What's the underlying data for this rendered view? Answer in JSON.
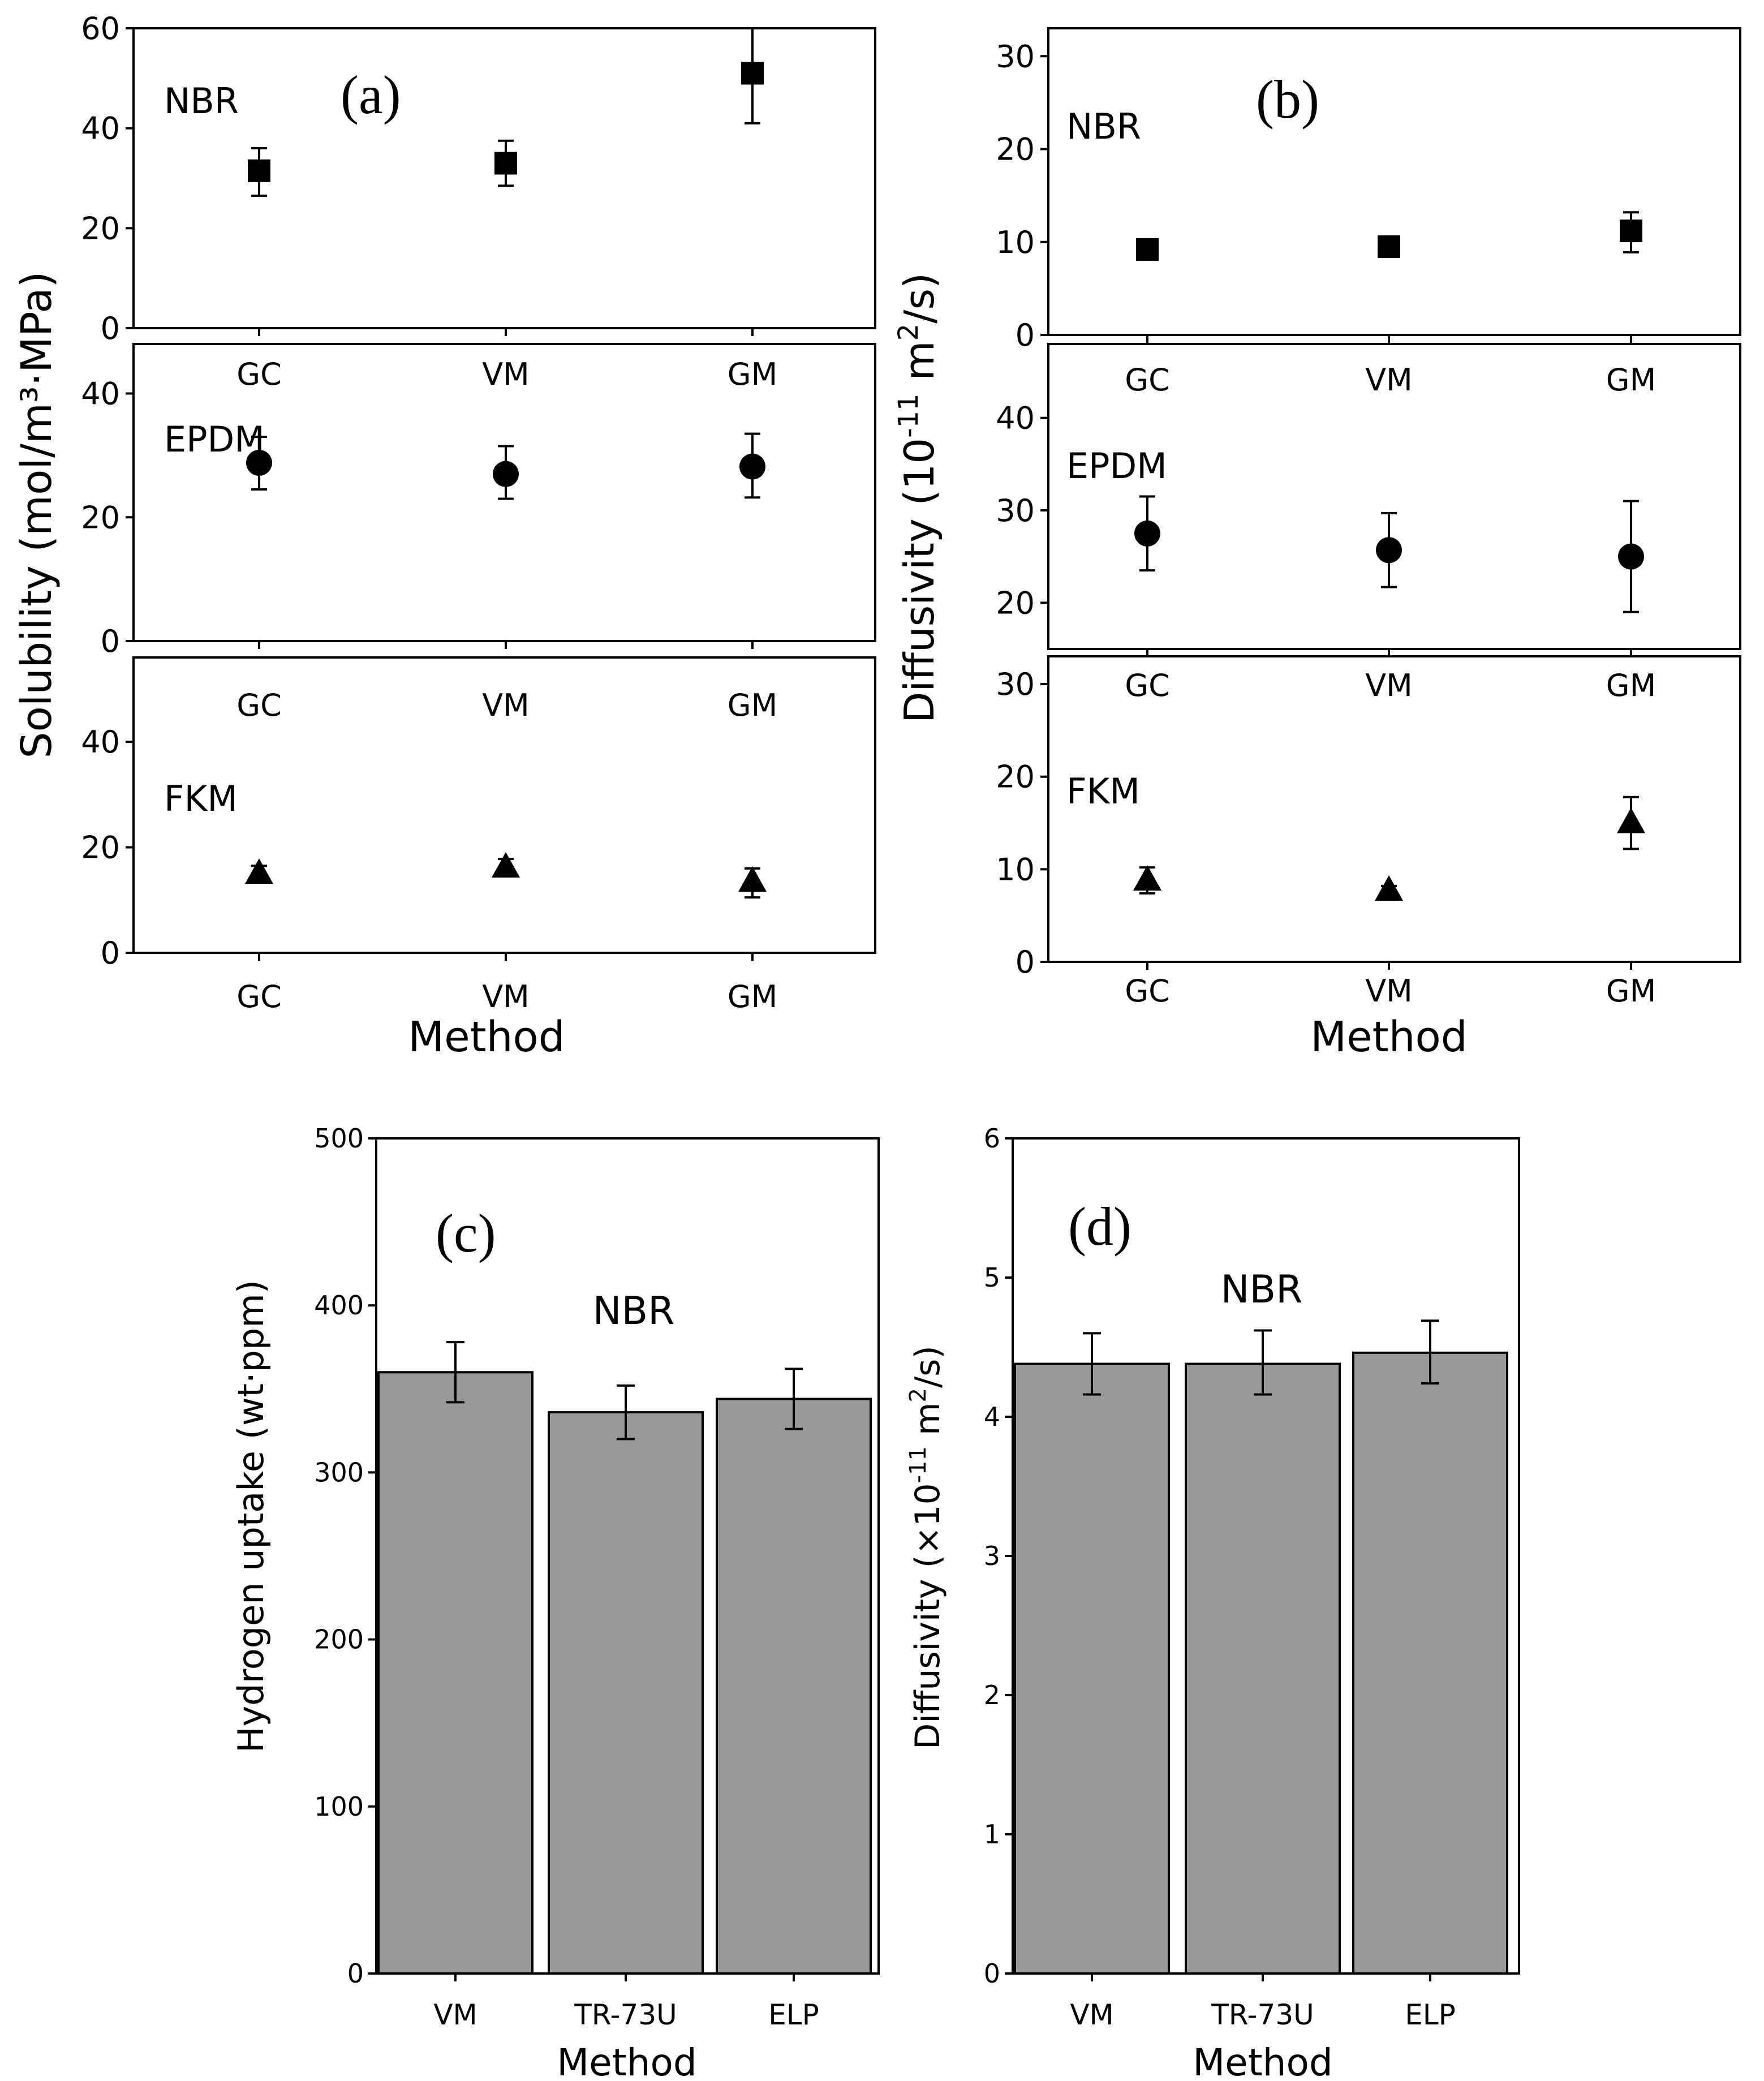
{
  "colors": {
    "bar_fill": "#999999",
    "marker": "#000000"
  },
  "chart_data": [
    {
      "type": "scatter",
      "panel_letter": "(a)",
      "ylabel": "Solubility (mol/m³·MPa)",
      "xlabel": "Method",
      "categories": [
        "GC",
        "VM",
        "GM"
      ],
      "subplots": [
        {
          "material": "NBR",
          "marker": "square",
          "ylim": [
            0,
            60
          ],
          "yticks": [
            0,
            20,
            40,
            60
          ],
          "values": [
            31.5,
            33,
            51
          ],
          "err_low": [
            26.5,
            28.5,
            41
          ],
          "err_high": [
            36,
            37.5,
            60
          ]
        },
        {
          "material": "EPDM",
          "marker": "circle",
          "ylim": [
            0,
            48
          ],
          "yticks": [
            0,
            20,
            40
          ],
          "values": [
            28.8,
            27,
            28.2
          ],
          "err_low": [
            24.5,
            23,
            23.2
          ],
          "err_high": [
            33,
            31.5,
            33.5
          ]
        },
        {
          "material": "FKM",
          "marker": "triangle",
          "ylim": [
            0,
            56
          ],
          "yticks": [
            0,
            20,
            40
          ],
          "values": [
            15,
            16.2,
            13.5
          ],
          "err_low": [
            13.5,
            14.6,
            10.5
          ],
          "err_high": [
            16.5,
            17.8,
            16
          ]
        }
      ],
      "legend": "none",
      "grid": false
    },
    {
      "type": "scatter",
      "panel_letter": "(b)",
      "ylabel_main": "Diffusivity (10",
      "ylabel_sup1": "-11",
      "ylabel_mid": " m",
      "ylabel_sup2": "2",
      "ylabel_end": "/s)",
      "xlabel": "Method",
      "categories": [
        "GC",
        "VM",
        "GM"
      ],
      "subplots": [
        {
          "material": "NBR",
          "marker": "square",
          "ylim": [
            0,
            33
          ],
          "yticks": [
            0,
            10,
            20,
            30
          ],
          "values": [
            9.2,
            9.5,
            11.2
          ],
          "err_low": [
            8.4,
            8.7,
            8.9
          ],
          "err_high": [
            10,
            10.3,
            13.2
          ]
        },
        {
          "material": "EPDM",
          "marker": "circle",
          "ylim": [
            15,
            48
          ],
          "yticks": [
            20,
            30,
            40
          ],
          "values": [
            27.5,
            25.7,
            25
          ],
          "err_low": [
            23.5,
            21.7,
            19
          ],
          "err_high": [
            31.5,
            29.7,
            31
          ]
        },
        {
          "material": "FKM",
          "marker": "triangle",
          "ylim": [
            0,
            33
          ],
          "yticks": [
            0,
            10,
            20,
            30
          ],
          "values": [
            8.8,
            7.7,
            15
          ],
          "err_low": [
            7.4,
            7.2,
            12.2
          ],
          "err_high": [
            10.2,
            8.2,
            17.8
          ]
        }
      ],
      "legend": "none",
      "grid": false
    },
    {
      "type": "bar",
      "panel_letter": "(c)",
      "annotation": "NBR",
      "categories": [
        "VM",
        "TR-73U",
        "ELP"
      ],
      "values": [
        360,
        336,
        344
      ],
      "err_low": [
        342,
        320,
        326
      ],
      "err_high": [
        378,
        352,
        362
      ],
      "ylabel": "Hydrogen uptake (wt·ppm)",
      "xlabel": "Method",
      "ylim": [
        0,
        500
      ],
      "yticks": [
        0,
        100,
        200,
        300,
        400,
        500
      ],
      "legend": "none",
      "grid": false
    },
    {
      "type": "bar",
      "panel_letter": "(d)",
      "annotation": "NBR",
      "categories": [
        "VM",
        "TR-73U",
        "ELP"
      ],
      "values": [
        4.38,
        4.38,
        4.46
      ],
      "err_low": [
        4.16,
        4.16,
        4.24
      ],
      "err_high": [
        4.6,
        4.62,
        4.69
      ],
      "ylabel_main": "Diffusivity (×10",
      "ylabel_sup1": "-11",
      "ylabel_mid": " m",
      "ylabel_sup2": "2",
      "ylabel_end": "/s)",
      "xlabel": "Method",
      "ylim": [
        0,
        6
      ],
      "yticks": [
        0,
        1,
        2,
        3,
        4,
        5,
        6
      ],
      "legend": "none",
      "grid": false
    }
  ]
}
